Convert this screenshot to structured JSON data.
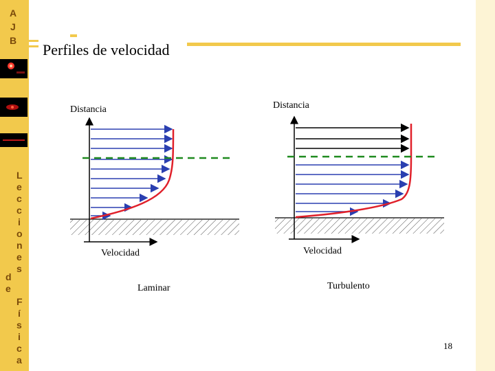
{
  "sidebar": {
    "logo_letters": [
      "A",
      "J",
      "B"
    ],
    "vertical_text": [
      "L",
      "e",
      "c",
      "c",
      "i",
      "o",
      "n",
      "e",
      "s",
      "d",
      "e",
      "F",
      "í",
      "s",
      "i",
      "c",
      "a"
    ]
  },
  "slide": {
    "title": "Perfiles de velocidad",
    "page_number": "18"
  },
  "diagrams": {
    "laminar": {
      "y_label": "Distancia",
      "x_label": "Velocidad",
      "caption": "Laminar"
    },
    "turbulent": {
      "y_label": "Distancia",
      "x_label": "Velocidad",
      "caption": "Turbulento"
    }
  },
  "colors": {
    "sidebar": "#f2c94c",
    "profile_curve": "#e0202a",
    "arrow_blue": "#2a3fb0",
    "boundary_line": "#1e8a1e"
  }
}
